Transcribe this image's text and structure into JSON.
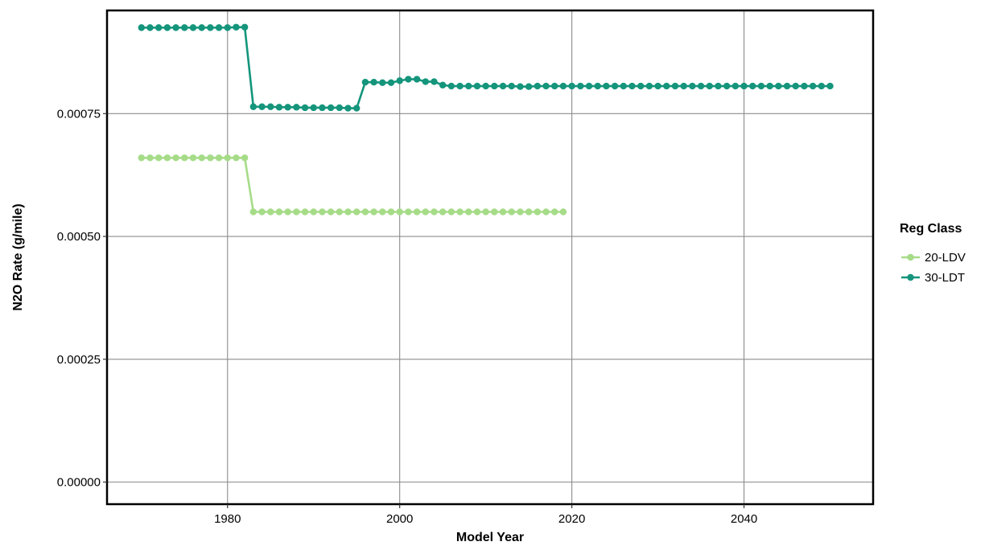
{
  "chart_data": {
    "type": "line",
    "xlabel": "Model Year",
    "ylabel": "N2O Rate (g/mile)",
    "xlim": [
      1966,
      2055
    ],
    "ylim": [
      -4.5e-05,
      0.00096
    ],
    "x_ticks": [
      1980,
      2000,
      2020,
      2040
    ],
    "x_tick_labels": [
      "1980",
      "2000",
      "2020",
      "2040"
    ],
    "y_ticks": [
      0,
      0.00025,
      0.0005,
      0.00075
    ],
    "y_tick_labels": [
      "0.00000",
      "0.00025",
      "0.00050",
      "0.00075"
    ],
    "grid": true,
    "legend": {
      "title": "Reg Class",
      "position": "right"
    },
    "series": [
      {
        "name": "20-LDV",
        "color": "#a6dc88",
        "x": [
          1970,
          1971,
          1972,
          1973,
          1974,
          1975,
          1976,
          1977,
          1978,
          1979,
          1980,
          1981,
          1982,
          1983,
          1984,
          1985,
          1986,
          1987,
          1988,
          1989,
          1990,
          1991,
          1992,
          1993,
          1994,
          1995,
          1996,
          1997,
          1998,
          1999,
          2000,
          2001,
          2002,
          2003,
          2004,
          2005,
          2006,
          2007,
          2008,
          2009,
          2010,
          2011,
          2012,
          2013,
          2014,
          2015,
          2016,
          2017,
          2018,
          2019
        ],
        "y": [
          0.00066,
          0.00066,
          0.00066,
          0.00066,
          0.00066,
          0.00066,
          0.00066,
          0.00066,
          0.00066,
          0.00066,
          0.00066,
          0.00066,
          0.00066,
          0.00055,
          0.00055,
          0.00055,
          0.00055,
          0.00055,
          0.00055,
          0.00055,
          0.00055,
          0.00055,
          0.00055,
          0.00055,
          0.00055,
          0.00055,
          0.00055,
          0.00055,
          0.00055,
          0.00055,
          0.00055,
          0.00055,
          0.00055,
          0.00055,
          0.00055,
          0.00055,
          0.00055,
          0.00055,
          0.00055,
          0.00055,
          0.00055,
          0.00055,
          0.00055,
          0.00055,
          0.00055,
          0.00055,
          0.00055,
          0.00055,
          0.00055,
          0.00055
        ]
      },
      {
        "name": "30-LDT",
        "color": "#14957c",
        "x": [
          1970,
          1971,
          1972,
          1973,
          1974,
          1975,
          1976,
          1977,
          1978,
          1979,
          1980,
          1981,
          1982,
          1983,
          1984,
          1985,
          1986,
          1987,
          1988,
          1989,
          1990,
          1991,
          1992,
          1993,
          1994,
          1995,
          1996,
          1997,
          1998,
          1999,
          2000,
          2001,
          2002,
          2003,
          2004,
          2005,
          2006,
          2007,
          2008,
          2009,
          2010,
          2011,
          2012,
          2013,
          2014,
          2015,
          2016,
          2017,
          2018,
          2019,
          2020,
          2021,
          2022,
          2023,
          2024,
          2025,
          2026,
          2027,
          2028,
          2029,
          2030,
          2031,
          2032,
          2033,
          2034,
          2035,
          2036,
          2037,
          2038,
          2039,
          2040,
          2041,
          2042,
          2043,
          2044,
          2045,
          2046,
          2047,
          2048,
          2049,
          2050
        ],
        "y": [
          0.000925,
          0.000925,
          0.000925,
          0.000925,
          0.000925,
          0.000925,
          0.000925,
          0.000925,
          0.000925,
          0.000925,
          0.000925,
          0.000926,
          0.000926,
          0.000764,
          0.000764,
          0.000764,
          0.000763,
          0.000763,
          0.000763,
          0.000762,
          0.000762,
          0.000762,
          0.000762,
          0.000762,
          0.000761,
          0.000761,
          0.000814,
          0.000814,
          0.000813,
          0.000813,
          0.000817,
          0.00082,
          0.00082,
          0.000815,
          0.000815,
          0.000808,
          0.000806,
          0.000806,
          0.000806,
          0.000806,
          0.000806,
          0.000806,
          0.000806,
          0.000806,
          0.000805,
          0.000805,
          0.000806,
          0.000806,
          0.000806,
          0.000806,
          0.000806,
          0.000806,
          0.000806,
          0.000806,
          0.000806,
          0.000806,
          0.000806,
          0.000806,
          0.000806,
          0.000806,
          0.000806,
          0.000806,
          0.000806,
          0.000806,
          0.000806,
          0.000806,
          0.000806,
          0.000806,
          0.000806,
          0.000806,
          0.000806,
          0.000806,
          0.000806,
          0.000806,
          0.000806,
          0.000806,
          0.000806,
          0.000806,
          0.000806,
          0.000806,
          0.000806
        ]
      }
    ]
  }
}
